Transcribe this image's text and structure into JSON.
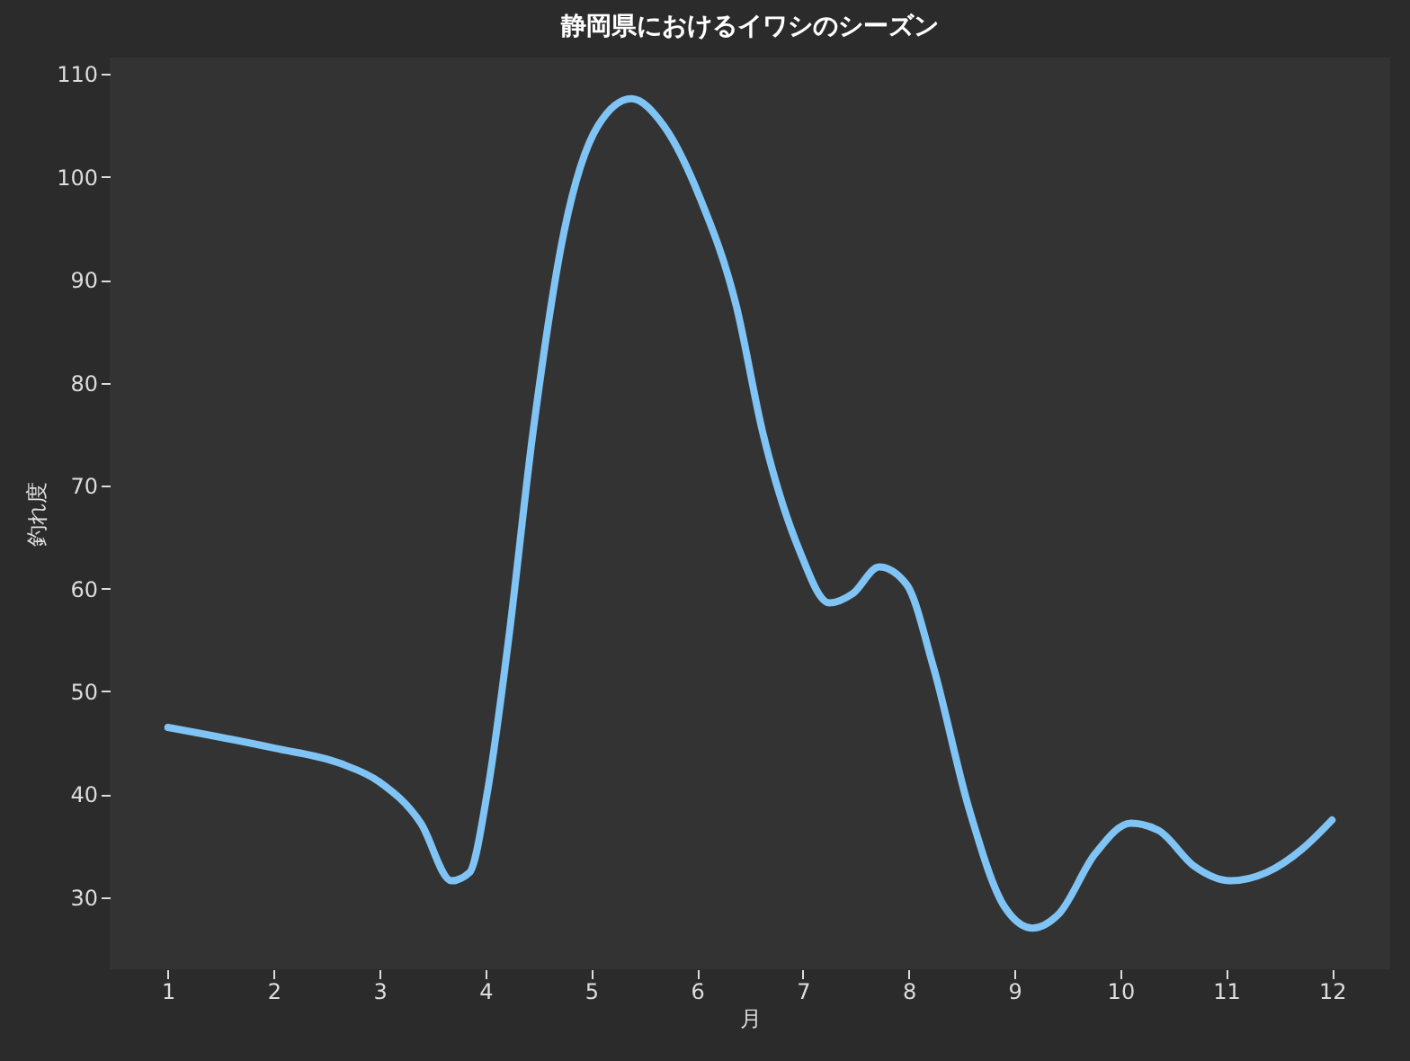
{
  "chart_data": {
    "type": "line",
    "title": "静岡県におけるイワシのシーズン",
    "xlabel": "月",
    "ylabel": "釣れ度",
    "xlim": [
      0.45,
      12.55
    ],
    "xticks": [
      1,
      2,
      3,
      4,
      5,
      6,
      7,
      8,
      9,
      10,
      11,
      12
    ],
    "ylim": [
      23,
      111.6
    ],
    "yticks": [
      30,
      40,
      50,
      60,
      70,
      80,
      90,
      100,
      110
    ],
    "grid": false,
    "marker": "none",
    "line_style": "solid",
    "series": [
      {
        "color": "#7fc4f5",
        "x": [
          1,
          2,
          2.63,
          3,
          3.39,
          3.68,
          3.85,
          4.02,
          4.21,
          4.45,
          4.74,
          5.06,
          5.38,
          5.69,
          6.03,
          6.37,
          6.62,
          6.96,
          7.25,
          7.47,
          7.72,
          7.98,
          8.23,
          8.57,
          8.91,
          9.17,
          9.42,
          9.76,
          10.1,
          10.36,
          10.7,
          11.04,
          11.38,
          11.72,
          12
        ],
        "values": [
          46.5,
          44.5,
          43,
          41.2,
          37.2,
          31.6,
          32.4,
          40.3,
          54.3,
          75.2,
          94.5,
          104.9,
          107.6,
          104.9,
          97.9,
          87.5,
          75.2,
          63.9,
          58.6,
          59.5,
          62.1,
          60.4,
          52.5,
          38.6,
          29,
          27,
          28.4,
          34.2,
          37.2,
          36.5,
          33,
          31.6,
          32.4,
          34.7,
          37.5
        ]
      }
    ]
  }
}
